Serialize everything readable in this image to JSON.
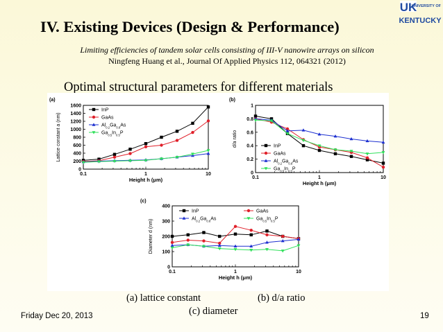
{
  "slide": {
    "title": "IV. Existing Devices (Design & Performance)",
    "citation_line1": "Limiting efficiencies of tandem solar cells consisting of III-V nanowire arrays on silicon",
    "citation_line2": "Ningfeng Huang et al., Journal Of Applied Physics 112, 064321 (2012)",
    "subtitle": "Optimal structural parameters for different materials",
    "caption_a": "(a)   lattice constant",
    "caption_b": "(b) d/a ratio",
    "caption_c": "(c) diameter",
    "footer_date": "Friday Dec 20, 2013",
    "page_number": "19"
  },
  "logo": {
    "line1": "UK",
    "line2": "UNIVERSITY OF",
    "line3": "KENTUCKY",
    "color": "#1f4aa0"
  },
  "colors": {
    "InP": "#000000",
    "GaAs": "#e0202a",
    "AlGaAs": "#1c2fd0",
    "GaInP": "#2fe05a"
  },
  "chart_data": [
    {
      "type": "line",
      "panel_label": "(a)",
      "xlabel": "Height h (μm)",
      "ylabel": "Lattice constant a (nm)",
      "x_scale": "log",
      "xlim": [
        0.1,
        10
      ],
      "ylim": [
        0,
        1600
      ],
      "xticks": [
        "0.1",
        "1",
        "10"
      ],
      "yticks": [
        "0",
        "200",
        "400",
        "600",
        "800",
        "1000",
        "1200",
        "1400",
        "1600"
      ],
      "legend_position": "top-left",
      "x": [
        0.1,
        0.178,
        0.316,
        0.562,
        1.0,
        1.778,
        3.162,
        5.623,
        10
      ],
      "series": [
        {
          "name": "InP",
          "marker": "square",
          "values": [
            220,
            250,
            370,
            500,
            640,
            800,
            950,
            1150,
            1560
          ]
        },
        {
          "name": "GaAs",
          "marker": "circle",
          "values": [
            190,
            210,
            300,
            390,
            560,
            600,
            720,
            920,
            1210
          ]
        },
        {
          "name": "Al0.2Ga0.8As",
          "marker": "triangle-up",
          "values": [
            180,
            200,
            210,
            220,
            230,
            260,
            300,
            340,
            390
          ]
        },
        {
          "name": "Ga0.5In0.5P",
          "marker": "triangle-down",
          "values": [
            170,
            190,
            200,
            210,
            220,
            260,
            300,
            380,
            470
          ]
        }
      ]
    },
    {
      "type": "line",
      "panel_label": "(b)",
      "xlabel": "Height h (μm)",
      "ylabel": "d/a ratio",
      "x_scale": "log",
      "xlim": [
        0.1,
        10
      ],
      "ylim": [
        0,
        1
      ],
      "xticks": [
        "0.1",
        "1",
        "10"
      ],
      "yticks": [
        "0",
        "0.2",
        "0.4",
        "0.6",
        "0.8",
        "1"
      ],
      "legend_position": "bottom-left",
      "x": [
        0.1,
        0.178,
        0.316,
        0.562,
        1.0,
        1.778,
        3.162,
        5.623,
        10
      ],
      "series": [
        {
          "name": "InP",
          "marker": "square",
          "values": [
            0.84,
            0.8,
            0.58,
            0.4,
            0.33,
            0.28,
            0.24,
            0.19,
            0.14
          ]
        },
        {
          "name": "GaAs",
          "marker": "circle",
          "values": [
            0.8,
            0.75,
            0.65,
            0.49,
            0.38,
            0.34,
            0.3,
            0.22,
            0.08
          ]
        },
        {
          "name": "Al0.2Ga0.8As",
          "marker": "triangle-up",
          "values": [
            0.8,
            0.78,
            0.62,
            0.63,
            0.57,
            0.54,
            0.5,
            0.47,
            0.45
          ]
        },
        {
          "name": "Ga0.5In0.5P",
          "marker": "triangle-down",
          "values": [
            0.78,
            0.77,
            0.58,
            0.48,
            0.4,
            0.34,
            0.32,
            0.28,
            0.3
          ]
        }
      ]
    },
    {
      "type": "line",
      "panel_label": "(c)",
      "xlabel": "Height h (μm)",
      "ylabel": "Diameter d (nm)",
      "x_scale": "log",
      "xlim": [
        0.1,
        10
      ],
      "ylim": [
        0,
        400
      ],
      "xticks": [
        "0.1",
        "1",
        "10"
      ],
      "yticks": [
        "0",
        "100",
        "200",
        "300",
        "400"
      ],
      "legend_position": "top",
      "x": [
        0.1,
        0.178,
        0.316,
        0.562,
        1.0,
        1.778,
        3.162,
        5.623,
        10
      ],
      "series": [
        {
          "name": "InP",
          "marker": "square",
          "values": [
            200,
            210,
            225,
            200,
            215,
            210,
            235,
            200,
            185
          ]
        },
        {
          "name": "GaAs",
          "marker": "circle",
          "values": [
            160,
            175,
            170,
            155,
            265,
            240,
            210,
            200,
            185
          ]
        },
        {
          "name": "Al0.2Ga0.8As",
          "marker": "triangle-up",
          "values": [
            140,
            145,
            135,
            140,
            135,
            135,
            160,
            170,
            180
          ]
        },
        {
          "name": "Ga0.5In0.5P",
          "marker": "triangle-down",
          "values": [
            125,
            145,
            135,
            120,
            115,
            110,
            115,
            105,
            140
          ]
        }
      ]
    }
  ]
}
